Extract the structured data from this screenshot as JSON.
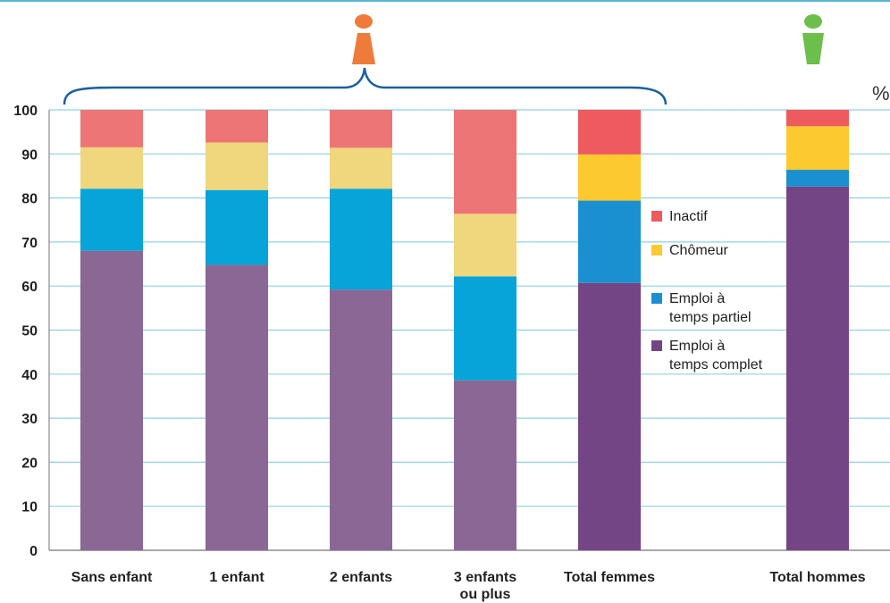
{
  "chart_data": {
    "type": "bar",
    "stacked": true,
    "unit_label": "%",
    "ylim": [
      0,
      100
    ],
    "yticks": [
      0,
      10,
      20,
      30,
      40,
      50,
      60,
      70,
      80,
      90,
      100
    ],
    "grid": true,
    "legend_position": "right",
    "categories": [
      "Sans enfant",
      "1 enfant",
      "2 enfants",
      "3 enfants\nou plus",
      "Total femmes",
      "Total hommes"
    ],
    "series": [
      {
        "name": "Emploi à\n temps complet",
        "key": "complet",
        "values": [
          68,
          64.8,
          59.2,
          38.6,
          60.7,
          82.6
        ],
        "colors": [
          "#8a6795",
          "#8a6795",
          "#8a6795",
          "#8a6795",
          "#744585",
          "#744585"
        ]
      },
      {
        "name": "Emploi à\ntemps partiel",
        "key": "partiel",
        "values": [
          14.1,
          17,
          22.9,
          23.6,
          18.7,
          3.8
        ],
        "colors": [
          "#06a4d8",
          "#06a4d8",
          "#06a4d8",
          "#06a4d8",
          "#1a90d0",
          "#1a90d0"
        ]
      },
      {
        "name": "Chômeur",
        "key": "chomeur",
        "values": [
          9.4,
          10.8,
          9.3,
          14.2,
          10.5,
          9.9
        ],
        "colors": [
          "#f0d67c",
          "#f0d67c",
          "#f0d67c",
          "#f0d67c",
          "#fcc92e",
          "#fcc92e"
        ]
      },
      {
        "name": "Inactif",
        "key": "inactif",
        "values": [
          8.5,
          7.4,
          8.6,
          23.6,
          10.1,
          3.7
        ],
        "colors": [
          "#ee7576",
          "#ee7576",
          "#ee7576",
          "#ee7576",
          "#ef5a5e",
          "#ef5a5e"
        ]
      }
    ],
    "legend": [
      {
        "label": "Inactif",
        "color": "#ef5a5e"
      },
      {
        "label": "Chômeur",
        "color": "#fcc92e"
      },
      {
        "label": "Emploi à\ntemps partiel",
        "color": "#1a90d0"
      },
      {
        "label": "Emploi à\n temps complet",
        "color": "#744585"
      }
    ],
    "icons": [
      {
        "name": "female-person-icon",
        "color": "#ef7b3a"
      },
      {
        "name": "male-person-icon",
        "color": "#6cbf4a"
      }
    ],
    "bracket_color": "#1b5fa0"
  }
}
